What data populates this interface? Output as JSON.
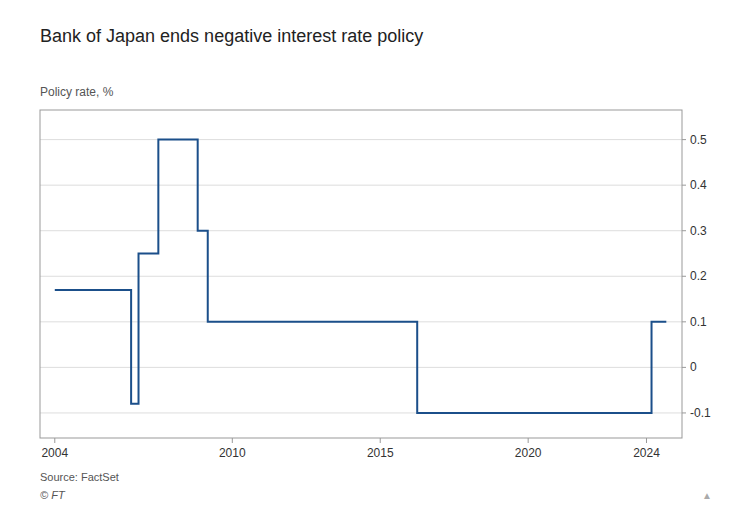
{
  "chart_data": {
    "type": "line",
    "title": "Bank of Japan ends negative interest rate policy",
    "y_label": "Policy rate, %",
    "annotations": [
      "Source: FactSet",
      "© FT",
      "▲"
    ],
    "x": [
      2004.0,
      2006.58,
      2006.58,
      2006.83,
      2006.83,
      2007.5,
      2007.5,
      2008.83,
      2008.83,
      2009.17,
      2009.17,
      2013.0,
      2013.0,
      2016.25,
      2016.25,
      2024.17,
      2024.17,
      2024.67
    ],
    "values": [
      0.17,
      0.17,
      -0.08,
      -0.08,
      0.25,
      0.25,
      0.5,
      0.5,
      0.3,
      0.3,
      0.1,
      0.1,
      0.1,
      0.1,
      -0.1,
      -0.1,
      0.1,
      0.1
    ],
    "color": "#1B4F8A",
    "xlim": [
      2003.5,
      2025.2
    ],
    "ylim": [
      -0.155,
      0.565
    ],
    "xticks": [
      2004,
      2010,
      2015,
      2020,
      2024
    ],
    "yticks": [
      -0.1,
      0,
      0.1,
      0.2,
      0.3,
      0.4,
      0.5
    ],
    "grid": true
  }
}
